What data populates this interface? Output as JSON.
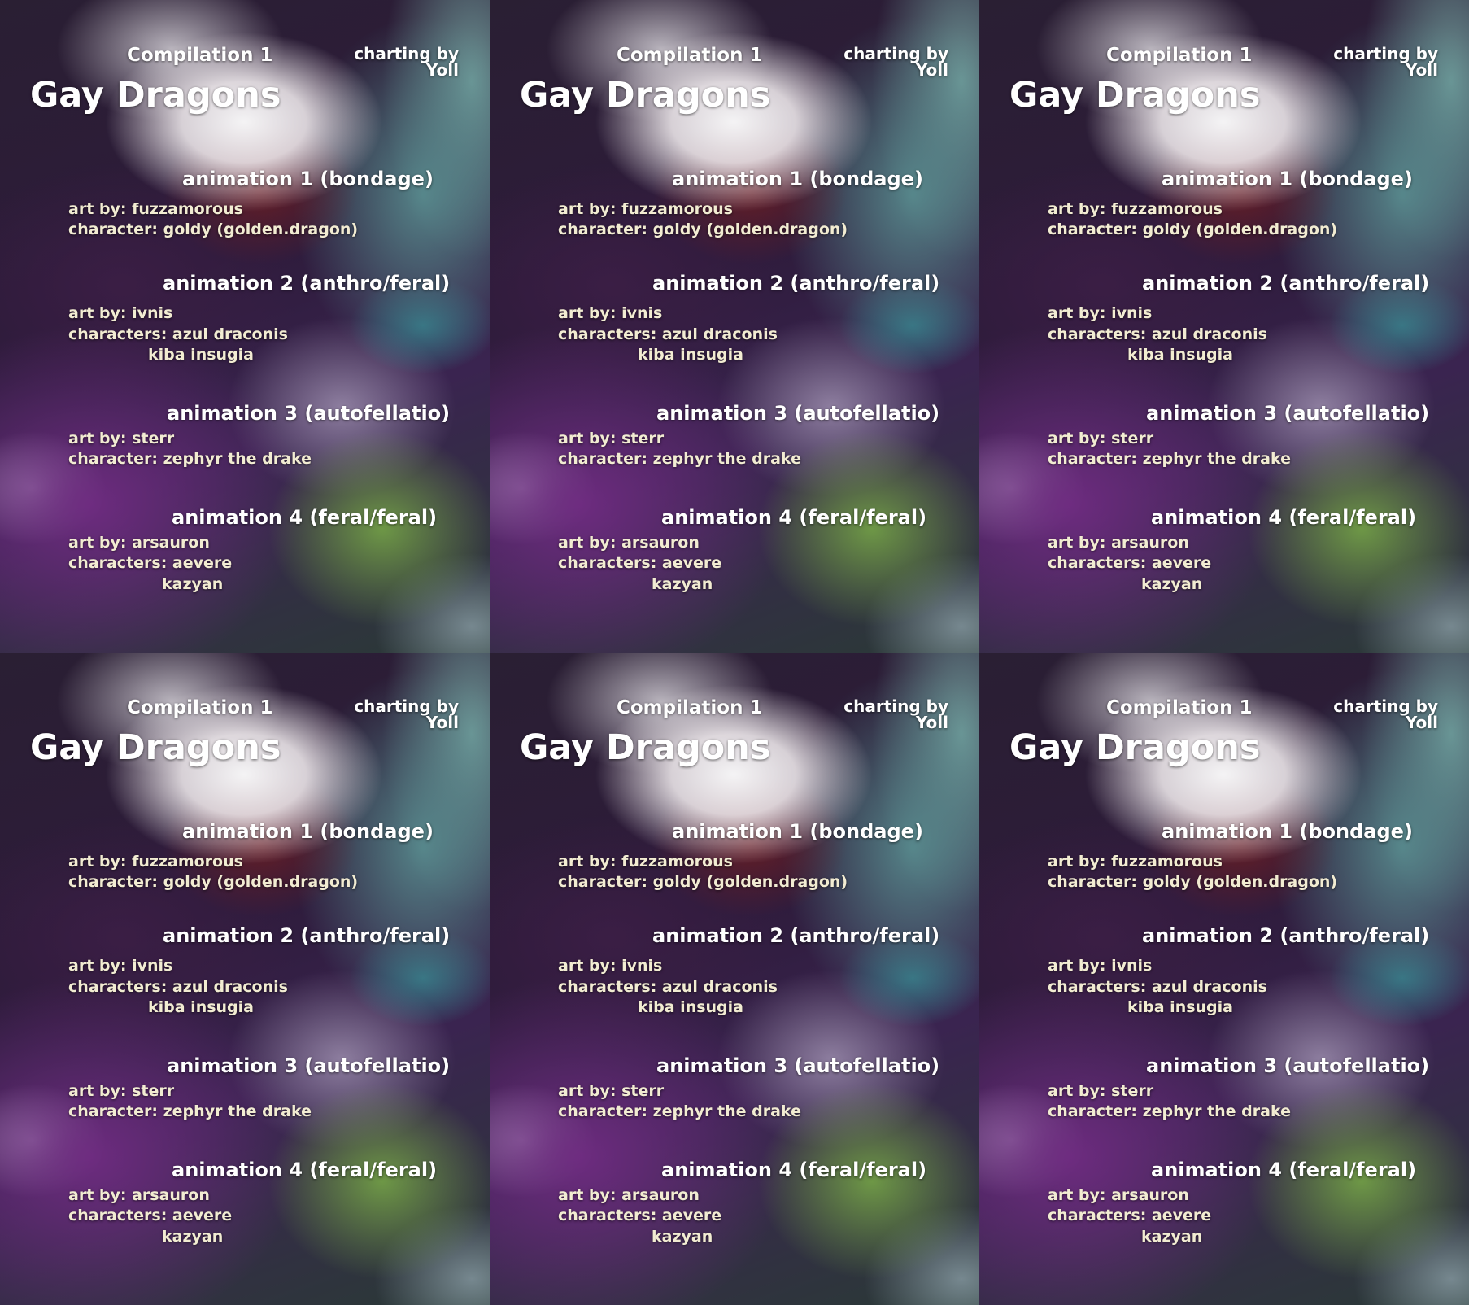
{
  "header": {
    "compilation": "Compilation 1",
    "title": "Gay Dragons",
    "charting_by": "charting by",
    "charter": "Yoll"
  },
  "animations": [
    {
      "heading": "animation 1 (bondage)",
      "art_by": "art by: fuzzamorous",
      "characters_line": "character: goldy (golden.dragon)",
      "extra_line": ""
    },
    {
      "heading": "animation 2 (anthro/feral)",
      "art_by": "art by: ivnis",
      "characters_line": "characters: azul draconis",
      "extra_line": "kiba insugia"
    },
    {
      "heading": "animation 3 (autofellatio)",
      "art_by": "art by: sterr",
      "characters_line": "character: zephyr the drake",
      "extra_line": ""
    },
    {
      "heading": "animation 4 (feral/feral)",
      "art_by": "art by: arsauron",
      "characters_line": "characters: aevere",
      "extra_line": "kazyan"
    }
  ]
}
